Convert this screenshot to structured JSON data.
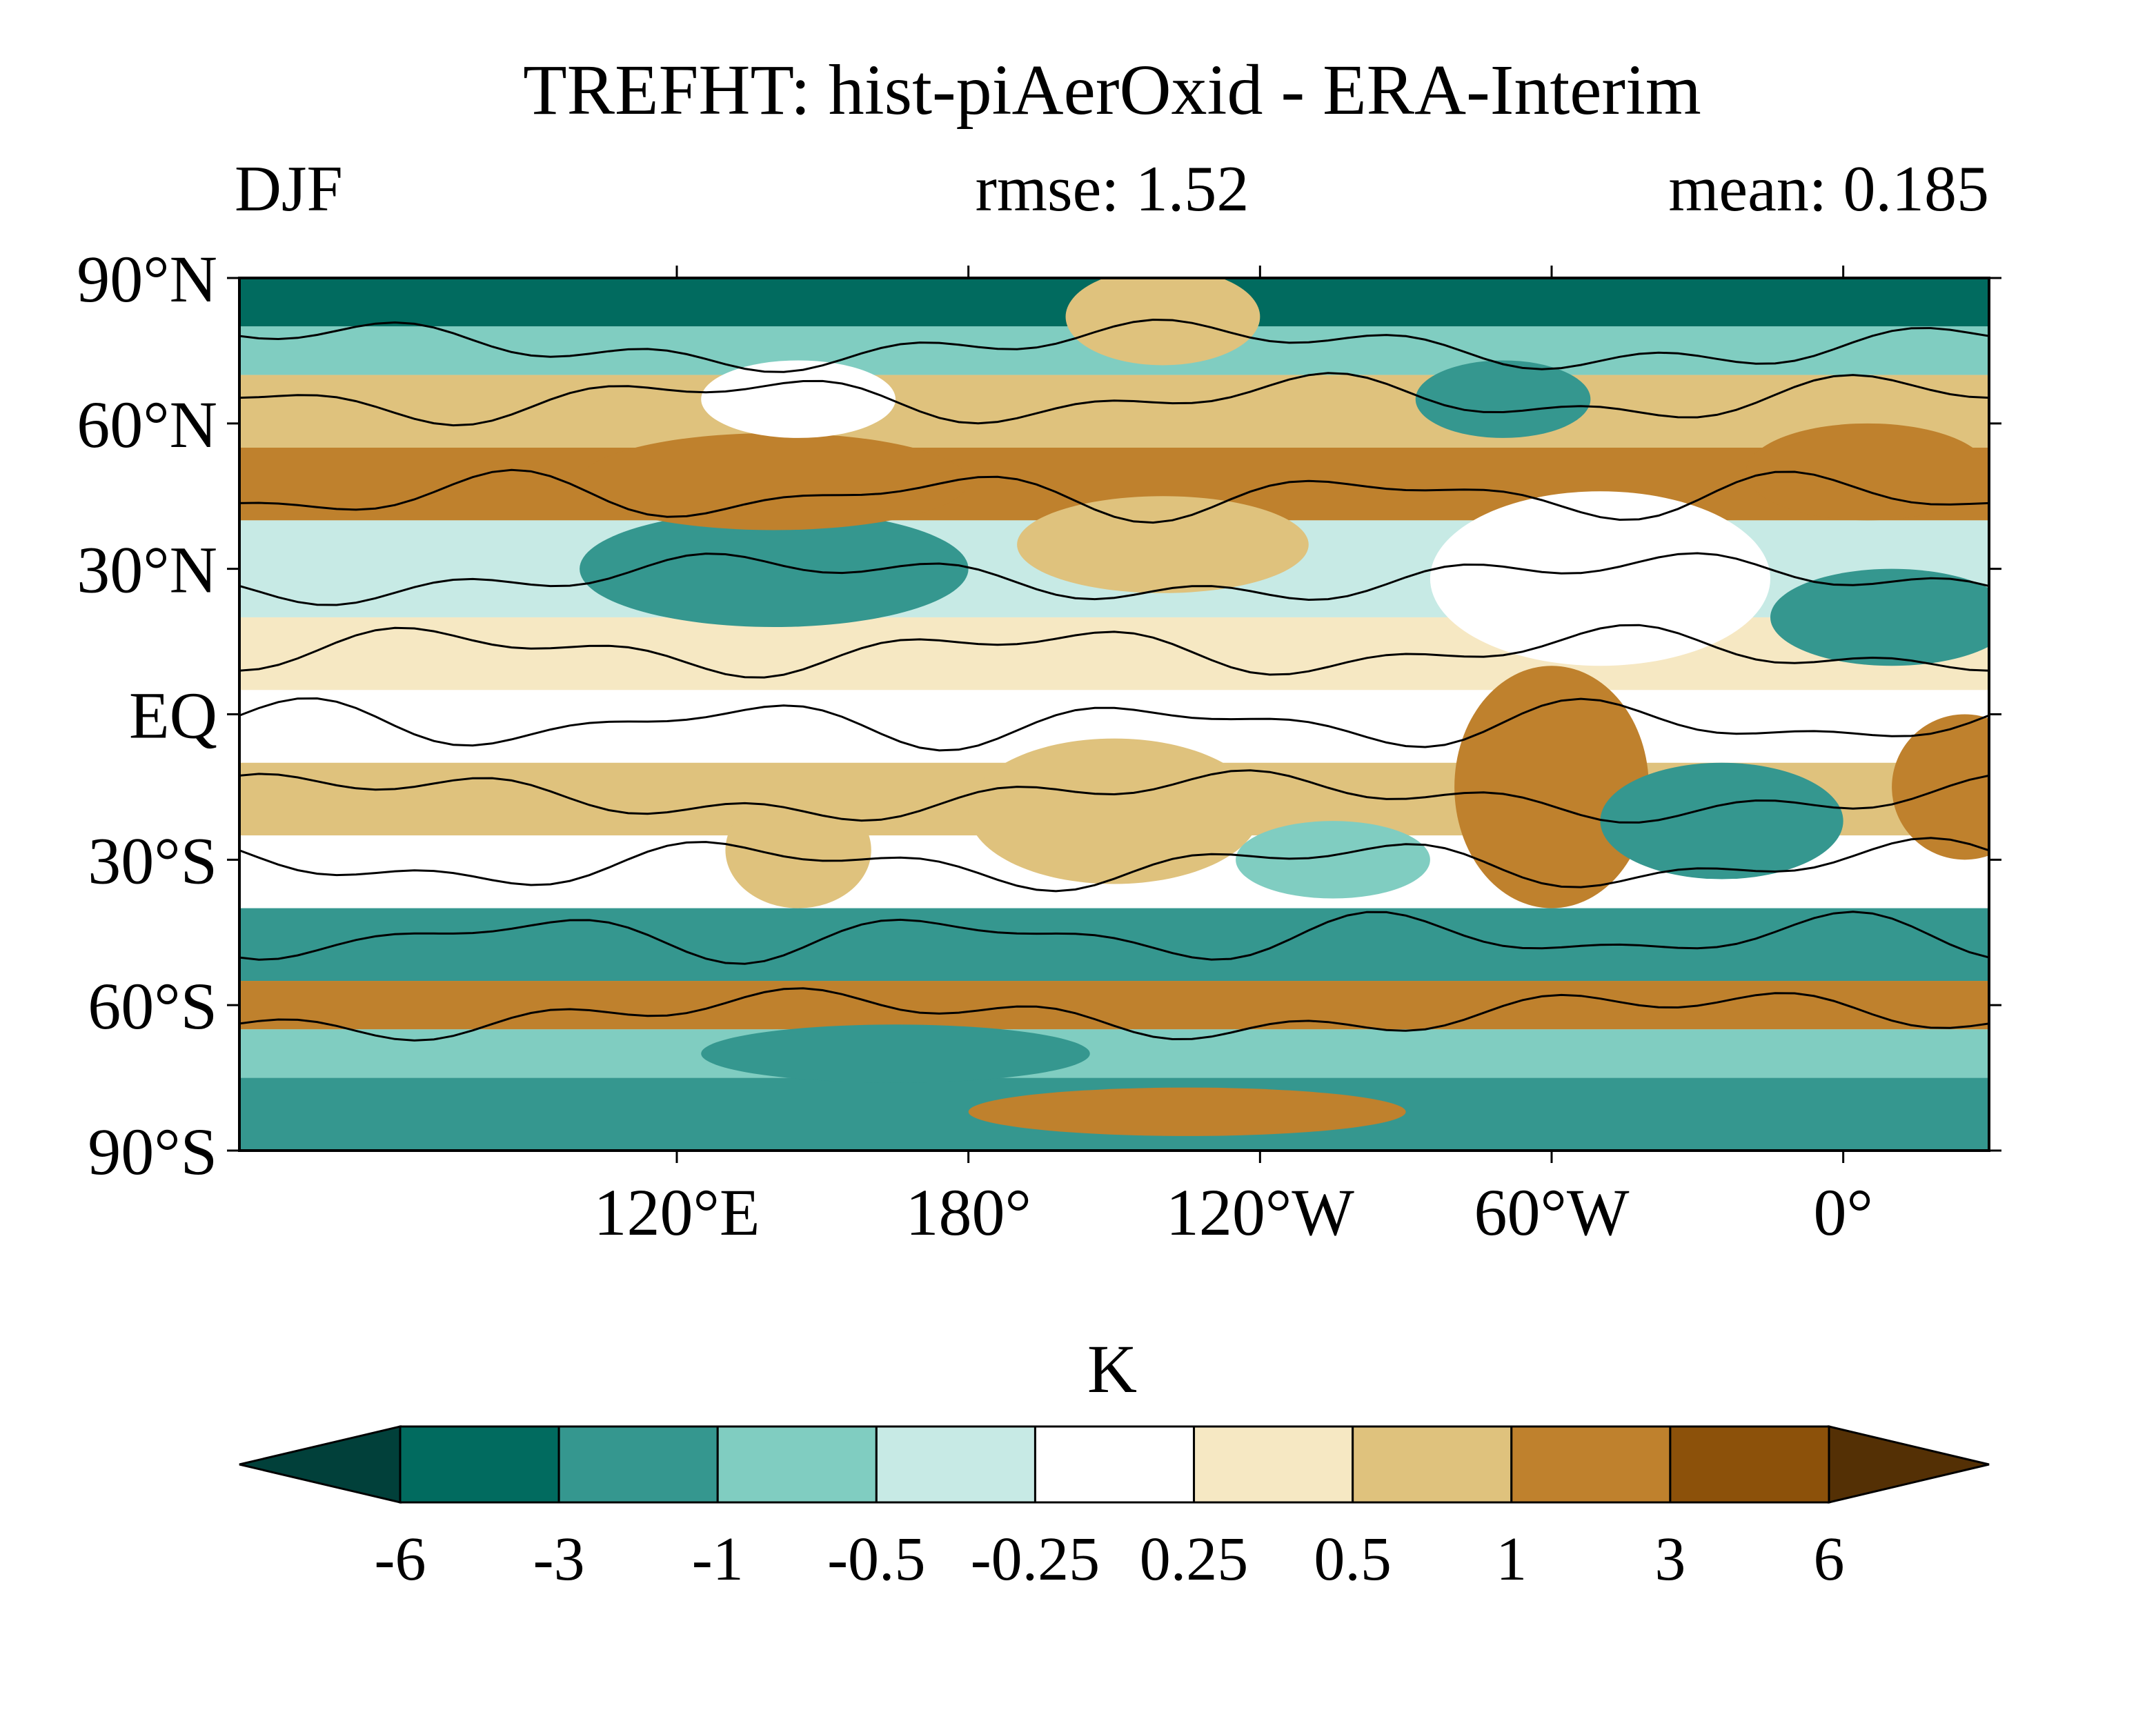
{
  "chart_data": {
    "type": "heatmap",
    "title": "TREFHT: hist-piAerOxid - ERA-Interim",
    "season": "DJF",
    "rmse_text": "rmse: 1.52",
    "mean_text": "mean: 0.185",
    "projection": "cylindrical equidistant, centered 150E",
    "xlim": [
      30,
      390
    ],
    "ylim": [
      -90,
      90
    ],
    "x_ticks": [
      {
        "value": 120,
        "label": "120°E"
      },
      {
        "value": 180,
        "label": "180°"
      },
      {
        "value": 240,
        "label": "120°W"
      },
      {
        "value": 300,
        "label": "60°W"
      },
      {
        "value": 360,
        "label": "0°"
      }
    ],
    "y_ticks": [
      {
        "value": 90,
        "label": "90°N"
      },
      {
        "value": 60,
        "label": "60°N"
      },
      {
        "value": 30,
        "label": "30°N"
      },
      {
        "value": 0,
        "label": "EQ"
      },
      {
        "value": -30,
        "label": "30°S"
      },
      {
        "value": -60,
        "label": "60°S"
      },
      {
        "value": -90,
        "label": "90°S"
      }
    ],
    "colorbar": {
      "unit": "K",
      "levels": [
        -6,
        -3,
        -1,
        -0.5,
        -0.25,
        0.25,
        0.5,
        1,
        3,
        6
      ],
      "level_labels": [
        "-6",
        "-3",
        "-1",
        "-0.5",
        "-0.25",
        "0.25",
        "0.5",
        "1",
        "3",
        "6"
      ],
      "colors": [
        "#01403A",
        "#016B5F",
        "#35978F",
        "#80CDC1",
        "#C7EAE5",
        "#FFFFFF",
        "#F6E8C3",
        "#DFC27D",
        "#BF812D",
        "#8C510A",
        "#543005"
      ]
    },
    "bands": [
      {
        "lat": [
          90,
          80
        ],
        "value": -4
      },
      {
        "lat": [
          80,
          70
        ],
        "value": -0.7
      },
      {
        "lat": [
          70,
          55
        ],
        "value": 0.7
      },
      {
        "lat": [
          55,
          40
        ],
        "value": 2
      },
      {
        "lat": [
          40,
          20
        ],
        "value": -0.4
      },
      {
        "lat": [
          20,
          5
        ],
        "value": 0.4
      },
      {
        "lat": [
          5,
          -10
        ],
        "value": 0
      },
      {
        "lat": [
          -10,
          -25
        ],
        "value": 0.7
      },
      {
        "lat": [
          -25,
          -40
        ],
        "value": 0
      },
      {
        "lat": [
          -40,
          -55
        ],
        "value": -2
      },
      {
        "lat": [
          -55,
          -65
        ],
        "value": 2
      },
      {
        "lat": [
          -65,
          -75
        ],
        "value": -0.7
      },
      {
        "lat": [
          -75,
          -90
        ],
        "value": -2
      }
    ],
    "anomalies": [
      {
        "lon": 140,
        "lat": 30,
        "rx": 40,
        "ry": 12,
        "value": -2
      },
      {
        "lon": 220,
        "lat": 35,
        "rx": 30,
        "ry": 10,
        "value": 0.7
      },
      {
        "lon": 310,
        "lat": 28,
        "rx": 35,
        "ry": 18,
        "value": 0
      },
      {
        "lon": 370,
        "lat": 20,
        "rx": 25,
        "ry": 10,
        "value": -2
      },
      {
        "lon": 300,
        "lat": -15,
        "rx": 20,
        "ry": 25,
        "value": 2
      },
      {
        "lon": 335,
        "lat": -22,
        "rx": 25,
        "ry": 12,
        "value": -2
      },
      {
        "lon": 385,
        "lat": -15,
        "rx": 15,
        "ry": 15,
        "value": 2
      },
      {
        "lon": 210,
        "lat": -20,
        "rx": 30,
        "ry": 15,
        "value": 0.7
      },
      {
        "lon": 255,
        "lat": -30,
        "rx": 20,
        "ry": 8,
        "value": -0.7
      },
      {
        "lon": 140,
        "lat": 48,
        "rx": 40,
        "ry": 10,
        "value": 2
      },
      {
        "lon": 220,
        "lat": 82,
        "rx": 20,
        "ry": 10,
        "value": 0.7
      },
      {
        "lon": 290,
        "lat": 65,
        "rx": 18,
        "ry": 8,
        "value": -2
      },
      {
        "lon": 365,
        "lat": 50,
        "rx": 25,
        "ry": 10,
        "value": 2
      },
      {
        "lon": 165,
        "lat": -70,
        "rx": 40,
        "ry": 6,
        "value": -2
      },
      {
        "lon": 225,
        "lat": -82,
        "rx": 45,
        "ry": 5,
        "value": 2
      },
      {
        "lon": 145,
        "lat": -28,
        "rx": 15,
        "ry": 12,
        "value": 0.7
      },
      {
        "lon": 145,
        "lat": 65,
        "rx": 20,
        "ry": 8,
        "value": 0
      }
    ],
    "contour_latitudes": [
      76,
      65,
      45,
      28,
      13,
      -2,
      -17,
      -31,
      -46,
      -62
    ]
  }
}
